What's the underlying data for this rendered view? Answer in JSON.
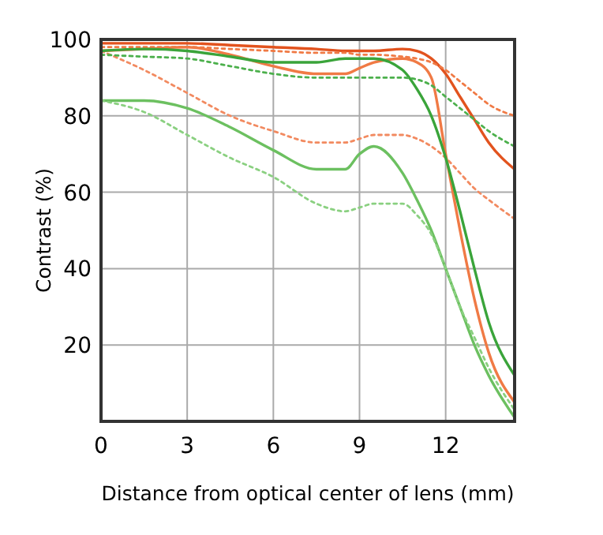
{
  "chart_data": {
    "type": "line",
    "xlabel": "Distance from optical center of lens (mm)",
    "ylabel": "Contrast (%)",
    "x": [
      0,
      1.5,
      3,
      4.5,
      6,
      7.5,
      8.5,
      9,
      9.5,
      10.5,
      11,
      11.5,
      12,
      12.5,
      13,
      13.5,
      14.4
    ],
    "xlim": [
      0,
      14.4
    ],
    "xticks": [
      0,
      3,
      6,
      9,
      12
    ],
    "ylim": [
      0,
      100
    ],
    "yticks": [
      20,
      40,
      60,
      80,
      100
    ],
    "grid": true,
    "series": [
      {
        "color": "#e2531e",
        "line_style": "solid",
        "values": [
          99,
          99,
          99,
          98.5,
          98,
          97.5,
          97,
          97,
          97,
          97.5,
          97,
          95,
          91,
          85,
          79,
          73,
          66
        ]
      },
      {
        "color": "#f07a45",
        "line_style": "solid",
        "values": [
          97,
          97.5,
          98,
          96,
          93,
          91,
          91,
          92.5,
          94,
          95,
          94,
          90,
          70,
          50,
          32,
          18,
          5
        ]
      },
      {
        "color": "#f07a45",
        "line_style": "dotted",
        "values": [
          98,
          98,
          98,
          97.5,
          97,
          96.5,
          96.5,
          96,
          96,
          95.5,
          95,
          94,
          92,
          89,
          86,
          83,
          80
        ]
      },
      {
        "color": "#f28a60",
        "line_style": "dotted",
        "values": [
          97,
          92,
          86,
          80,
          76,
          73,
          73,
          74,
          75,
          75,
          74,
          72,
          69,
          65,
          61,
          58,
          53
        ]
      },
      {
        "color": "#3aa43a",
        "line_style": "solid",
        "values": [
          97,
          97.5,
          97,
          95.5,
          94,
          94,
          95,
          95,
          95,
          92,
          87,
          80,
          69,
          55,
          40,
          26,
          12
        ]
      },
      {
        "color": "#4cb04c",
        "line_style": "dotted",
        "values": [
          96,
          95.5,
          95,
          93,
          91,
          90,
          90,
          90,
          90,
          90,
          89.5,
          88,
          85,
          82,
          79,
          76,
          72
        ]
      },
      {
        "color": "#6cc060",
        "line_style": "solid",
        "values": [
          84,
          84,
          82,
          77,
          71,
          66,
          66,
          70,
          72,
          65,
          58,
          50,
          40,
          30,
          20,
          12,
          1
        ]
      },
      {
        "color": "#8ad080",
        "line_style": "dotted",
        "values": [
          84,
          81,
          75,
          69,
          64,
          57,
          55,
          56,
          57,
          57,
          54,
          49,
          40,
          30,
          22,
          14,
          3
        ]
      }
    ]
  }
}
